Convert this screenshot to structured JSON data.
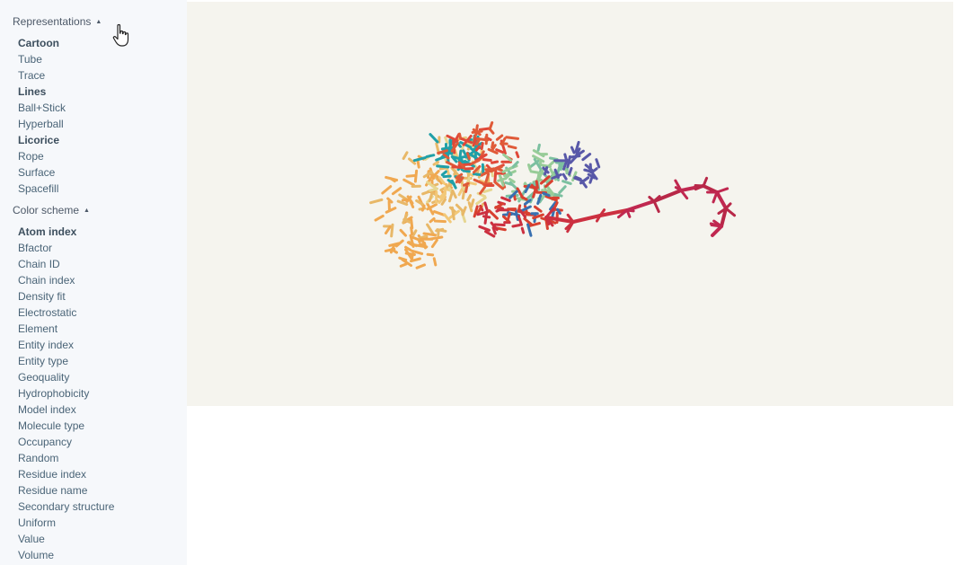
{
  "sidebar": {
    "representations": {
      "title": "Representations",
      "caret": "▲",
      "items": [
        {
          "label": "Cartoon",
          "active": true
        },
        {
          "label": "Tube",
          "active": false
        },
        {
          "label": "Trace",
          "active": false
        },
        {
          "label": "Lines",
          "active": true
        },
        {
          "label": "Ball+Stick",
          "active": false
        },
        {
          "label": "Hyperball",
          "active": false
        },
        {
          "label": "Licorice",
          "active": true
        },
        {
          "label": "Rope",
          "active": false
        },
        {
          "label": "Surface",
          "active": false
        },
        {
          "label": "Spacefill",
          "active": false
        }
      ]
    },
    "color_scheme": {
      "title": "Color scheme",
      "caret": "▲",
      "items": [
        {
          "label": "Atom index",
          "active": true
        },
        {
          "label": "Bfactor",
          "active": false
        },
        {
          "label": "Chain ID",
          "active": false
        },
        {
          "label": "Chain index",
          "active": false
        },
        {
          "label": "Density fit",
          "active": false
        },
        {
          "label": "Electrostatic",
          "active": false
        },
        {
          "label": "Element",
          "active": false
        },
        {
          "label": "Entity index",
          "active": false
        },
        {
          "label": "Entity type",
          "active": false
        },
        {
          "label": "Geoquality",
          "active": false
        },
        {
          "label": "Hydrophobicity",
          "active": false
        },
        {
          "label": "Model index",
          "active": false
        },
        {
          "label": "Molecule type",
          "active": false
        },
        {
          "label": "Occupancy",
          "active": false
        },
        {
          "label": "Random",
          "active": false
        },
        {
          "label": "Residue index",
          "active": false
        },
        {
          "label": "Residue name",
          "active": false
        },
        {
          "label": "Secondary structure",
          "active": false
        },
        {
          "label": "Uniform",
          "active": false
        },
        {
          "label": "Value",
          "active": false
        },
        {
          "label": "Volume",
          "active": false
        }
      ]
    }
  },
  "viewport": {
    "background": "#f5f4ee",
    "palette": [
      "#f0a850",
      "#e8b868",
      "#f2c878",
      "#e6d690",
      "#98cc98",
      "#7cc0a0",
      "#20a0a8",
      "#e05a38",
      "#e04838",
      "#d84030",
      "#cc3040",
      "#b82848",
      "#c02850",
      "#3870b0",
      "#5858a8"
    ]
  },
  "cursor": {
    "icon": "hand-pointer-icon"
  }
}
